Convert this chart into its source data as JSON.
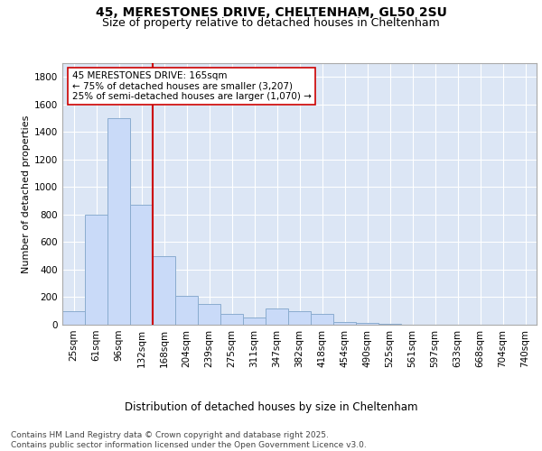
{
  "title1": "45, MERESTONES DRIVE, CHELTENHAM, GL50 2SU",
  "title2": "Size of property relative to detached houses in Cheltenham",
  "xlabel": "Distribution of detached houses by size in Cheltenham",
  "ylabel": "Number of detached properties",
  "categories": [
    "25sqm",
    "61sqm",
    "96sqm",
    "132sqm",
    "168sqm",
    "204sqm",
    "239sqm",
    "275sqm",
    "311sqm",
    "347sqm",
    "382sqm",
    "418sqm",
    "454sqm",
    "490sqm",
    "525sqm",
    "561sqm",
    "597sqm",
    "633sqm",
    "668sqm",
    "704sqm",
    "740sqm"
  ],
  "values": [
    100,
    800,
    1500,
    870,
    500,
    210,
    150,
    80,
    50,
    120,
    100,
    80,
    20,
    15,
    5,
    3,
    2,
    2,
    2,
    2,
    2
  ],
  "bar_color": "#c9daf8",
  "bar_edge_color": "#8aaccf",
  "vline_color": "#cc0000",
  "vline_pos": 3.5,
  "annotation_text": "45 MERESTONES DRIVE: 165sqm\n← 75% of detached houses are smaller (3,207)\n25% of semi-detached houses are larger (1,070) →",
  "annotation_box_color": "#ffffff",
  "annotation_box_edge": "#cc0000",
  "ylim": [
    0,
    1900
  ],
  "yticks": [
    0,
    200,
    400,
    600,
    800,
    1000,
    1200,
    1400,
    1600,
    1800
  ],
  "footer": "Contains HM Land Registry data © Crown copyright and database right 2025.\nContains public sector information licensed under the Open Government Licence v3.0.",
  "bg_color": "#dce6f5",
  "fig_bg": "#ffffff",
  "grid_color": "#ffffff",
  "title1_fontsize": 10,
  "title2_fontsize": 9,
  "xlabel_fontsize": 8.5,
  "ylabel_fontsize": 8,
  "tick_fontsize": 7.5,
  "footer_fontsize": 6.5,
  "ann_fontsize": 7.5
}
